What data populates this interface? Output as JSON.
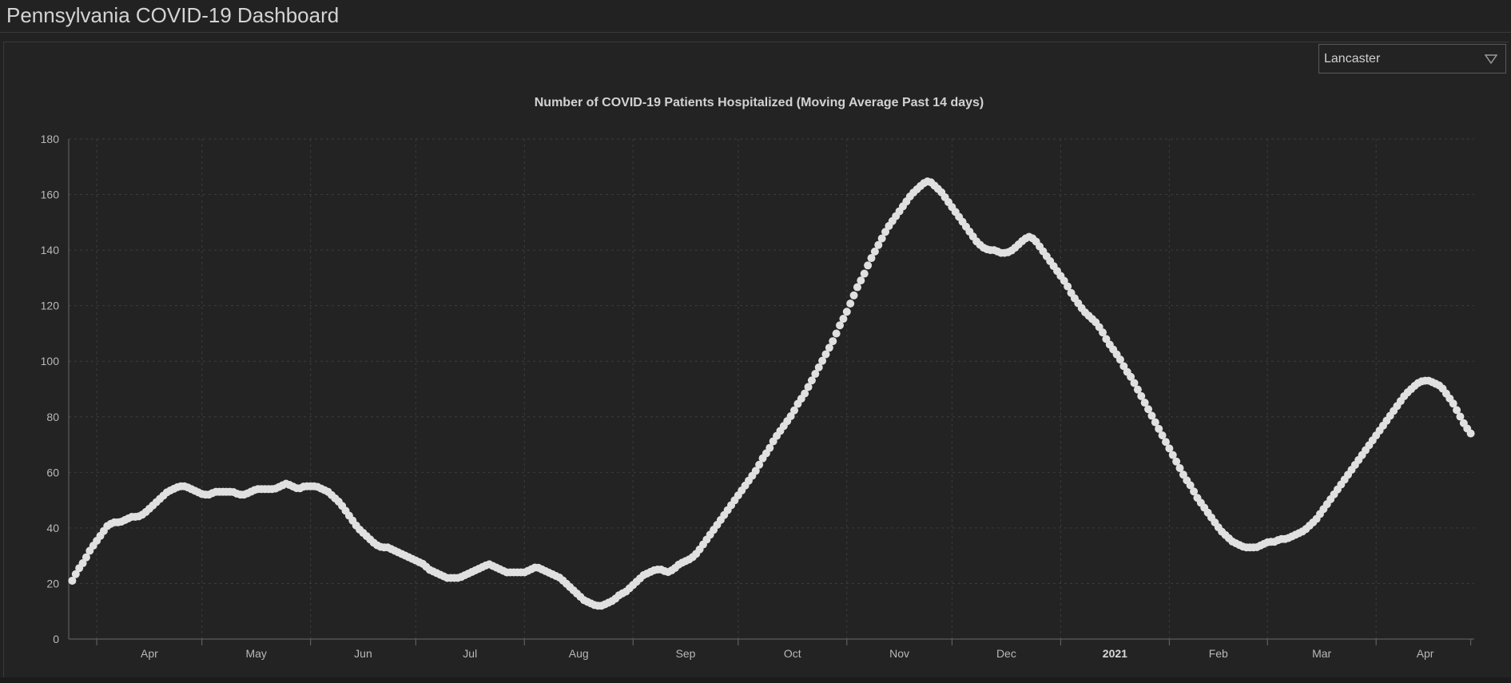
{
  "header": {
    "title": "Pennsylvania COVID-19 Dashboard"
  },
  "filter": {
    "selected": "Lancaster"
  },
  "colors": {
    "background": "#222222",
    "points": "#e0e0e0",
    "grid": "#3c3c3c",
    "text": "#b8b8b8"
  },
  "chart_data": {
    "type": "scatter",
    "title": "Number of COVID-19 Patients Hospitalized (Moving Average Past 14 days)",
    "xlabel": "",
    "ylabel": "",
    "ylim": [
      0,
      180
    ],
    "yticks": [
      0,
      20,
      40,
      60,
      80,
      100,
      120,
      140,
      160,
      180
    ],
    "xlim": [
      "2020-03-24",
      "2021-04-29"
    ],
    "xticks": [
      {
        "label": "Apr",
        "date": "2020-04-01"
      },
      {
        "label": "May",
        "date": "2020-05-01"
      },
      {
        "label": "Jun",
        "date": "2020-06-01"
      },
      {
        "label": "Jul",
        "date": "2020-07-01"
      },
      {
        "label": "Aug",
        "date": "2020-08-01"
      },
      {
        "label": "Sep",
        "date": "2020-09-01"
      },
      {
        "label": "Oct",
        "date": "2020-10-01"
      },
      {
        "label": "Nov",
        "date": "2020-11-01"
      },
      {
        "label": "Dec",
        "date": "2020-12-01"
      },
      {
        "label": "2021",
        "date": "2021-01-01",
        "bold": true
      },
      {
        "label": "Feb",
        "date": "2021-02-01"
      },
      {
        "label": "Mar",
        "date": "2021-03-01"
      },
      {
        "label": "Apr",
        "date": "2021-04-01"
      }
    ],
    "grid": true,
    "series": [
      {
        "start_date": "2020-03-25",
        "end_date": "2021-04-28",
        "values": [
          21,
          25,
          28,
          32,
          35,
          38,
          41,
          42,
          42,
          43,
          44,
          44,
          45,
          47,
          49,
          51,
          53,
          54,
          55,
          55,
          54,
          53,
          52,
          52,
          53,
          53,
          53,
          53,
          52,
          52,
          53,
          54,
          54,
          54,
          54,
          55,
          56,
          55,
          54,
          55,
          55,
          55,
          54,
          53,
          51,
          49,
          46,
          43,
          40,
          38,
          36,
          34,
          33,
          33,
          32,
          31,
          30,
          29,
          28,
          27,
          25,
          24,
          23,
          22,
          22,
          22,
          23,
          24,
          25,
          26,
          27,
          26,
          25,
          24,
          24,
          24,
          24,
          25,
          26,
          25,
          24,
          23,
          22,
          20,
          18,
          16,
          14,
          13,
          12,
          12,
          13,
          14,
          16,
          17,
          19,
          21,
          23,
          24,
          25,
          25,
          24,
          25,
          27,
          28,
          29,
          31,
          34,
          37,
          40,
          43,
          46,
          49,
          52,
          55,
          58,
          61,
          65,
          68,
          72,
          75,
          78,
          81,
          85,
          88,
          92,
          96,
          100,
          104,
          108,
          113,
          117,
          122,
          127,
          131,
          136,
          140,
          144,
          148,
          151,
          154,
          157,
          160,
          162,
          164,
          165,
          163,
          161,
          158,
          155,
          152,
          149,
          146,
          143,
          141,
          140,
          140,
          139,
          139,
          140,
          142,
          144,
          145,
          143,
          140,
          137,
          134,
          131,
          128,
          124,
          121,
          118,
          116,
          114,
          111,
          107,
          104,
          101,
          97,
          94,
          90,
          86,
          82,
          78,
          74,
          70,
          66,
          62,
          58,
          55,
          51,
          48,
          45,
          42,
          39,
          37,
          35,
          34,
          33,
          33,
          33,
          34,
          35,
          35,
          36,
          36,
          37,
          38,
          39,
          41,
          43,
          46,
          49,
          52,
          55,
          58,
          61,
          64,
          67,
          70,
          73,
          76,
          79,
          82,
          85,
          88,
          90,
          92,
          93,
          93,
          92,
          91,
          88,
          85,
          81,
          77,
          74
        ]
      }
    ]
  }
}
